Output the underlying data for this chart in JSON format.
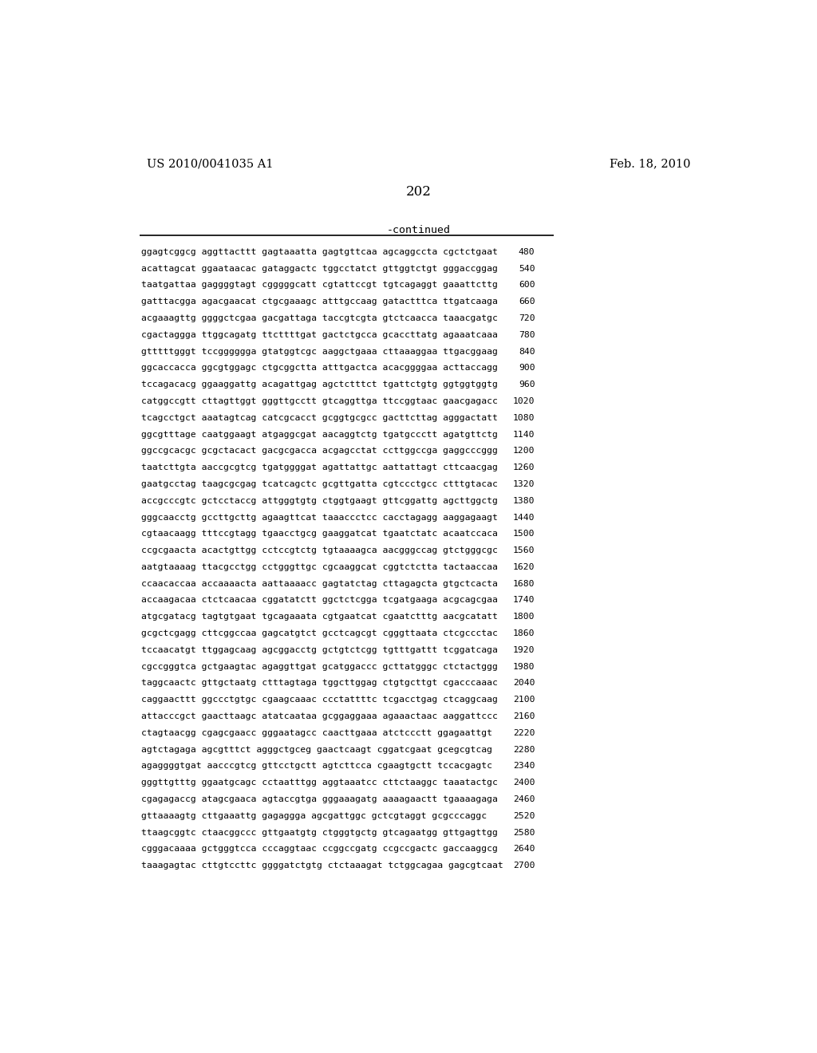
{
  "header_left": "US 2010/0041035 A1",
  "header_right": "Feb. 18, 2010",
  "page_number": "202",
  "continued_label": "-continued",
  "background_color": "#ffffff",
  "text_color": "#000000",
  "seq_font_size": 8.2,
  "header_font_size": 10.5,
  "page_num_font_size": 12,
  "continued_font_size": 9.5,
  "sequences": [
    {
      "seq": "ggagtcggcg aggttacttt gagtaaatta gagtgttcaa agcaggccta cgctctgaat",
      "num": "480"
    },
    {
      "seq": "acattagcat ggaataacac gataggactc tggcctatct gttggtctgt gggaccggag",
      "num": "540"
    },
    {
      "seq": "taatgattaa gaggggtagt cgggggcatt cgtattccgt tgtcagaggt gaaattcttg",
      "num": "600"
    },
    {
      "seq": "gatttacgga agacgaacat ctgcgaaagc atttgccaag gatactttca ttgatcaaga",
      "num": "660"
    },
    {
      "seq": "acgaaagttg ggggctcgaa gacgattaga taccgtcgta gtctcaacca taaacgatgc",
      "num": "720"
    },
    {
      "seq": "cgactaggga ttggcagatg ttcttttgat gactctgcca gcaccttatg agaaatcaaa",
      "num": "780"
    },
    {
      "seq": "gtttttgggt tccgggggga gtatggtcgc aaggctgaaa cttaaaggaa ttgacggaag",
      "num": "840"
    },
    {
      "seq": "ggcaccacca ggcgtggagc ctgcggctta atttgactca acacggggaa acttaccagg",
      "num": "900"
    },
    {
      "seq": "tccagacacg ggaaggattg acagattgag agctctttct tgattctgtg ggtggtggtg",
      "num": "960"
    },
    {
      "seq": "catggccgtt cttagttggt gggttgcctt gtcaggttga ttccggtaac gaacgagacc",
      "num": "1020"
    },
    {
      "seq": "tcagcctgct aaatagtcag catcgcacct gcggtgcgcc gacttcttag agggactatt",
      "num": "1080"
    },
    {
      "seq": "ggcgtttage caatggaagt atgaggcgat aacaggtctg tgatgccctt agatgttctg",
      "num": "1140"
    },
    {
      "seq": "ggccgcacgc gcgctacact gacgcgacca acgagcctat ccttggccga gaggcccggg",
      "num": "1200"
    },
    {
      "seq": "taatcttgta aaccgcgtcg tgatggggat agattattgc aattattagt cttcaacgag",
      "num": "1260"
    },
    {
      "seq": "gaatgcctag taagcgcgag tcatcagctc gcgttgatta cgtccctgcc ctttgtacac",
      "num": "1320"
    },
    {
      "seq": "accgcccgtc gctcctaccg attgggtgtg ctggtgaagt gttcggattg agcttggctg",
      "num": "1380"
    },
    {
      "seq": "gggcaacctg gccttgcttg agaagttcat taaaccctcc cacctagagg aaggagaagt",
      "num": "1440"
    },
    {
      "seq": "cgtaacaagg tttccgtagg tgaacctgcg gaaggatcat tgaatctatc acaatccaca",
      "num": "1500"
    },
    {
      "seq": "ccgcgaacta acactgttgg cctccgtctg tgtaaaagca aacgggccag gtctgggcgc",
      "num": "1560"
    },
    {
      "seq": "aatgtaaaag ttacgcctgg cctgggttgc cgcaaggcat cggtctctta tactaaccaa",
      "num": "1620"
    },
    {
      "seq": "ccaacaccaa accaaaacta aattaaaacc gagtatctag cttagagcta gtgctcacta",
      "num": "1680"
    },
    {
      "seq": "accaagacaa ctctcaacaa cggatatctt ggctctcgga tcgatgaaga acgcagcgaa",
      "num": "1740"
    },
    {
      "seq": "atgcgatacg tagtgtgaat tgcagaaata cgtgaatcat cgaatctttg aacgcatatt",
      "num": "1800"
    },
    {
      "seq": "gcgctcgagg cttcggccaa gagcatgtct gcctcagcgt cgggttaata ctcgccctac",
      "num": "1860"
    },
    {
      "seq": "tccaacatgt ttggagcaag agcggacctg gctgtctcgg tgtttgattt tcggatcaga",
      "num": "1920"
    },
    {
      "seq": "cgccgggtca gctgaagtac agaggttgat gcatggaccc gcttatgggc ctctactggg",
      "num": "1980"
    },
    {
      "seq": "taggcaactc gttgctaatg ctttagtaga tggcttggag ctgtgcttgt cgacccaaac",
      "num": "2040"
    },
    {
      "seq": "caggaacttt ggccctgtgc cgaagcaaac ccctattttc tcgacctgag ctcaggcaag",
      "num": "2100"
    },
    {
      "seq": "attacccgct gaacttaagc atatcaataa gcggaggaaa agaaactaac aaggattccc",
      "num": "2160"
    },
    {
      "seq": "ctagtaacgg cgagcgaacc gggaatagcc caacttgaaa atctccctt ggagaattgt",
      "num": "2220"
    },
    {
      "seq": "agtctagaga agcgtttct agggctgceg gaactcaagt cggatcgaat gcegcgtcag",
      "num": "2280"
    },
    {
      "seq": "agaggggtgat aacccgtcg gttcctgctt agtcttcca cgaagtgctt tccacgagtc",
      "num": "2340"
    },
    {
      "seq": "gggttgtttg ggaatgcagc cctaatttgg aggtaaatcc cttctaaggc taaatactgc",
      "num": "2400"
    },
    {
      "seq": "cgagagaccg atagcgaaca agtaccgtga gggaaagatg aaaagaactt tgaaaagaga",
      "num": "2460"
    },
    {
      "seq": "gttaaaagtg cttgaaattg gagaggga agcgattggc gctcgtaggt gcgcccaggc",
      "num": "2520"
    },
    {
      "seq": "ttaagcggtc ctaacggccc gttgaatgtg ctgggtgctg gtcagaatgg gttgagttgg",
      "num": "2580"
    },
    {
      "seq": "cgggacaaaa gctgggtcca cccaggtaac ccggccgatg ccgccgactc gaccaaggcg",
      "num": "2640"
    },
    {
      "seq": "taaagagtac cttgtccttc ggggatctgtg ctctaaagat tctggcagaa gagcgtcaat",
      "num": "2700"
    }
  ]
}
